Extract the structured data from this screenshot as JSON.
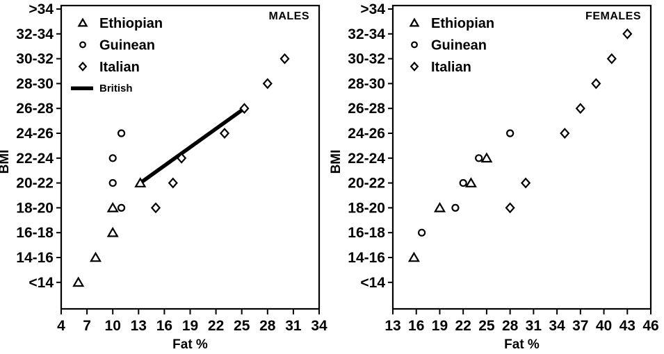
{
  "figure": {
    "background": "#ffffff",
    "ink_color": "#000000"
  },
  "chart_data": [
    {
      "type": "scatter",
      "title": "MALES",
      "xlabel": "Fat %",
      "ylabel": "BMI",
      "xlim": [
        4,
        34
      ],
      "x_ticks": [
        4,
        7,
        10,
        13,
        16,
        19,
        22,
        25,
        28,
        31,
        34
      ],
      "y_categories_top_to_bottom": [
        ">34",
        "32-34",
        "30-32",
        "28-30",
        "26-28",
        "24-26",
        "22-24",
        "20-22",
        "18-20",
        "16-18",
        "14-16",
        "<14"
      ],
      "legend": [
        {
          "label": "Ethiopian",
          "marker": "triangle"
        },
        {
          "label": "Guinean",
          "marker": "circle"
        },
        {
          "label": "Italian",
          "marker": "diamond"
        },
        {
          "label": "British",
          "marker": "line"
        }
      ],
      "legend_position": "top-left-inside",
      "grid": false,
      "series": [
        {
          "name": "Ethiopian",
          "marker": "triangle",
          "points": [
            {
              "x": 6,
              "y": "<14"
            },
            {
              "x": 8,
              "y": "14-16"
            },
            {
              "x": 10,
              "y": "16-18"
            },
            {
              "x": 10,
              "y": "18-20"
            },
            {
              "x": 13.2,
              "y": "20-22"
            }
          ]
        },
        {
          "name": "Guinean",
          "marker": "circle",
          "points": [
            {
              "x": 11,
              "y": "18-20"
            },
            {
              "x": 10,
              "y": "20-22"
            },
            {
              "x": 10,
              "y": "22-24"
            },
            {
              "x": 11,
              "y": "24-26"
            }
          ]
        },
        {
          "name": "Italian",
          "marker": "diamond",
          "points": [
            {
              "x": 15,
              "y": "18-20"
            },
            {
              "x": 17,
              "y": "20-22"
            },
            {
              "x": 18,
              "y": "22-24"
            },
            {
              "x": 23,
              "y": "24-26"
            },
            {
              "x": 25.3,
              "y": "26-28"
            },
            {
              "x": 28,
              "y": "28-30"
            },
            {
              "x": 30,
              "y": "30-32"
            }
          ]
        }
      ],
      "reference_line": {
        "name": "British",
        "from": {
          "x": 13.2,
          "y": "20-22"
        },
        "to": {
          "x": 25.3,
          "y": "26-28"
        }
      }
    },
    {
      "type": "scatter",
      "title": "FEMALES",
      "xlabel": "Fat %",
      "ylabel": "BMI",
      "xlim": [
        13,
        46
      ],
      "x_ticks": [
        13,
        16,
        19,
        22,
        25,
        28,
        31,
        34,
        37,
        40,
        43,
        46
      ],
      "y_categories_top_to_bottom": [
        ">34",
        "32-34",
        "30-32",
        "28-30",
        "26-28",
        "24-26",
        "22-24",
        "20-22",
        "18-20",
        "16-18",
        "14-16",
        "<14"
      ],
      "legend": [
        {
          "label": "Ethiopian",
          "marker": "triangle"
        },
        {
          "label": "Guinean",
          "marker": "circle"
        },
        {
          "label": "Italian",
          "marker": "diamond"
        }
      ],
      "legend_position": "top-left-inside",
      "grid": false,
      "series": [
        {
          "name": "Ethiopian",
          "marker": "triangle",
          "points": [
            {
              "x": 15.7,
              "y": "14-16"
            },
            {
              "x": 19,
              "y": "18-20"
            },
            {
              "x": 23,
              "y": "20-22"
            },
            {
              "x": 25,
              "y": "22-24"
            }
          ]
        },
        {
          "name": "Guinean",
          "marker": "circle",
          "points": [
            {
              "x": 16.7,
              "y": "16-18"
            },
            {
              "x": 21,
              "y": "18-20"
            },
            {
              "x": 22,
              "y": "20-22"
            },
            {
              "x": 24,
              "y": "22-24"
            },
            {
              "x": 28,
              "y": "24-26"
            }
          ]
        },
        {
          "name": "Italian",
          "marker": "diamond",
          "points": [
            {
              "x": 28,
              "y": "18-20"
            },
            {
              "x": 30,
              "y": "20-22"
            },
            {
              "x": 35,
              "y": "24-26"
            },
            {
              "x": 37,
              "y": "26-28"
            },
            {
              "x": 39,
              "y": "28-30"
            },
            {
              "x": 41,
              "y": "30-32"
            },
            {
              "x": 43,
              "y": "32-34"
            }
          ]
        }
      ],
      "reference_line": null
    }
  ]
}
